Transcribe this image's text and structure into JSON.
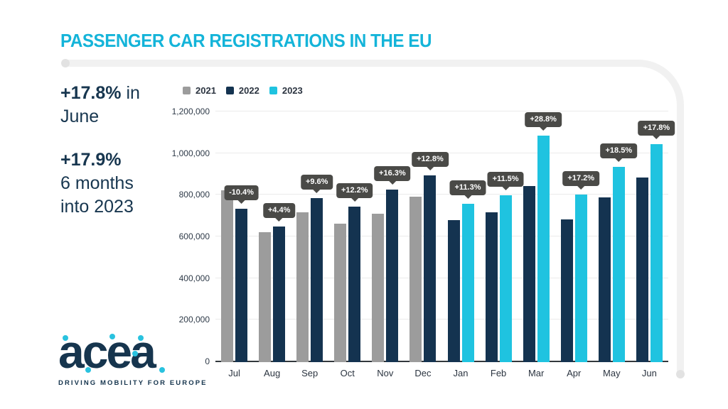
{
  "header": {
    "title": "PASSENGER CAR REGISTRATIONS IN THE EU"
  },
  "stats": [
    {
      "value": "+17.8%",
      "text": " in\nJune"
    },
    {
      "value": "+17.9%",
      "text": "\n6 months\ninto 2023"
    }
  ],
  "legend": [
    {
      "label": "2021",
      "color": "#9C9C9C"
    },
    {
      "label": "2022",
      "color": "#143350"
    },
    {
      "label": "2023",
      "color": "#1FC3E0"
    }
  ],
  "chart_data": {
    "type": "bar",
    "title": "Passenger car registrations in the EU",
    "categories": [
      "Jul",
      "Aug",
      "Sep",
      "Oct",
      "Nov",
      "Dec",
      "Jan",
      "Feb",
      "Mar",
      "Apr",
      "May",
      "Jun"
    ],
    "series": [
      {
        "name": "2021",
        "color": "#9C9C9C",
        "values": [
          824000,
          623000,
          719000,
          665000,
          713000,
          795000,
          null,
          null,
          null,
          null,
          null,
          null
        ]
      },
      {
        "name": "2022",
        "color": "#143350",
        "values": [
          738000,
          650000,
          788000,
          746000,
          829000,
          897000,
          683000,
          719000,
          845000,
          685000,
          792000,
          887000
        ]
      },
      {
        "name": "2023",
        "color": "#1FC3E0",
        "values": [
          null,
          null,
          null,
          null,
          null,
          null,
          760000,
          802000,
          1088000,
          803000,
          938000,
          1045000
        ]
      }
    ],
    "labels": [
      "-10.4%",
      "+4.4%",
      "+9.6%",
      "+12.2%",
      "+16.3%",
      "+12.8%",
      "+11.3%",
      "+11.5%",
      "+28.8%",
      "+17.2%",
      "+18.5%",
      "+17.8%"
    ],
    "xlabel": "",
    "ylabel": "",
    "ylim": [
      0,
      1200000
    ],
    "yticks": [
      0,
      200000,
      400000,
      600000,
      800000,
      1000000,
      1200000
    ],
    "ytick_labels": [
      "0",
      "200,000",
      "400,000",
      "600,000",
      "800,000",
      "1,000,000",
      "1,200,000"
    ],
    "grid": true,
    "legend_position": "top"
  },
  "logo": {
    "name": "acea",
    "tagline": "DRIVING MOBILITY FOR EUROPE"
  },
  "colors": {
    "title": "#14B4D9",
    "navy_text": "#17364F",
    "chip_bg": "#4A4A47",
    "chip_text": "#FFFFFF",
    "gridline": "#EBEBEB",
    "axis_line": "#33383D",
    "band": "#F1F1F1"
  }
}
